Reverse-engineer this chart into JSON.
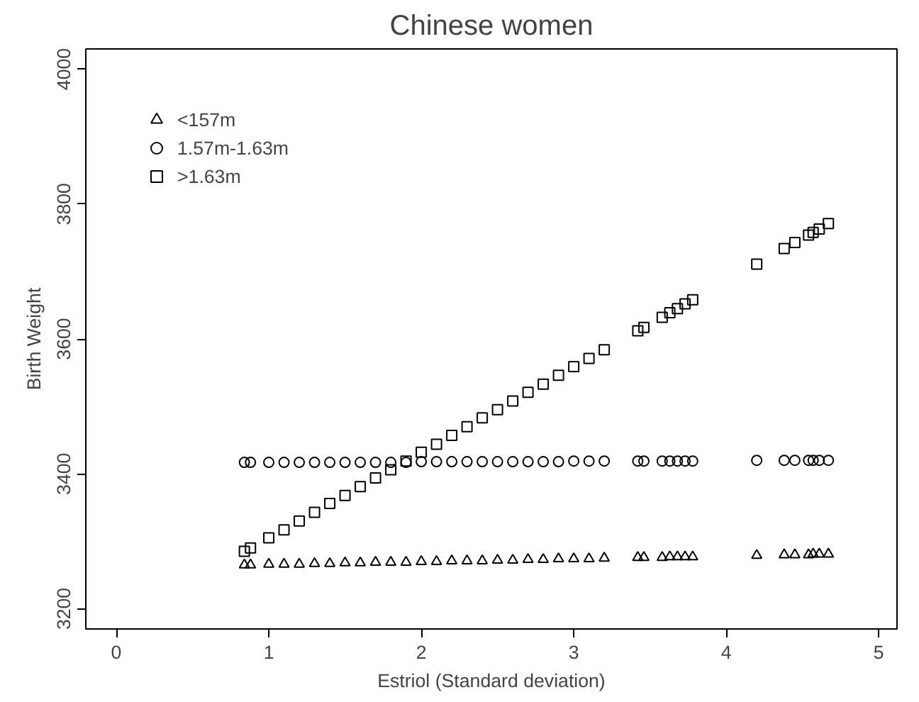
{
  "chart_data": {
    "type": "scatter",
    "title": "Chinese women",
    "xlabel": "Estriol (Standard deviation)",
    "ylabel": "Birth Weight",
    "x": [
      0.84,
      0.88,
      1.0,
      1.1,
      1.2,
      1.3,
      1.4,
      1.5,
      1.6,
      1.7,
      1.8,
      1.9,
      2.0,
      2.1,
      2.2,
      2.3,
      2.4,
      2.5,
      2.6,
      2.7,
      2.8,
      2.9,
      3.0,
      3.1,
      3.2,
      3.42,
      3.46,
      3.58,
      3.63,
      3.68,
      3.73,
      3.78,
      4.2,
      4.38,
      4.45,
      4.54,
      4.57,
      4.61,
      4.67
    ],
    "series": [
      {
        "name": "<157m",
        "color": "#000000",
        "marker": "triangle",
        "values": [
          3265,
          3265,
          3266,
          3266,
          3266,
          3267,
          3267,
          3268,
          3268,
          3269,
          3269,
          3269,
          3270,
          3270,
          3271,
          3271,
          3271,
          3272,
          3272,
          3273,
          3273,
          3274,
          3274,
          3274,
          3275,
          3276,
          3276,
          3276,
          3277,
          3277,
          3277,
          3277,
          3279,
          3280,
          3280,
          3280,
          3281,
          3281,
          3281
        ]
      },
      {
        "name": "1.57m-1.63m",
        "color": "#000000",
        "marker": "circle",
        "values": [
          3417,
          3417,
          3417,
          3417,
          3417,
          3417,
          3417,
          3417,
          3417,
          3417,
          3417,
          3417,
          3418,
          3418,
          3418,
          3418,
          3418,
          3418,
          3418,
          3418,
          3418,
          3418,
          3419,
          3419,
          3419,
          3419,
          3419,
          3419,
          3419,
          3419,
          3419,
          3419,
          3420,
          3420,
          3420,
          3420,
          3420,
          3420,
          3420
        ]
      },
      {
        "name": ">1.63m",
        "color": "#000000",
        "marker": "square",
        "values": [
          3285,
          3290,
          3305,
          3317,
          3330,
          3343,
          3356,
          3368,
          3381,
          3394,
          3406,
          3419,
          3432,
          3444,
          3457,
          3470,
          3483,
          3495,
          3508,
          3521,
          3533,
          3546,
          3559,
          3571,
          3584,
          3612,
          3617,
          3632,
          3639,
          3645,
          3652,
          3658,
          3711,
          3734,
          3743,
          3754,
          3758,
          3763,
          3771
        ]
      }
    ],
    "xlim": [
      -0.2,
      5.12
    ],
    "ylim": [
      3170,
      4030
    ],
    "xticks": [
      0,
      1,
      2,
      3,
      4,
      5
    ],
    "yticks": [
      3200,
      3400,
      3600,
      3800,
      4000
    ],
    "grid": false,
    "legend": "top left"
  }
}
